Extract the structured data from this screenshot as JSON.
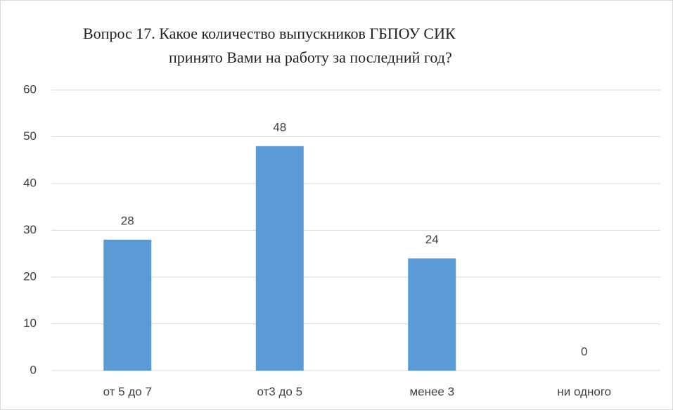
{
  "chart_data": {
    "type": "bar",
    "title": [
      "Вопрос 17. Какое количество выпускников  ГБПОУ СИК",
      "принято Вами на работу за последний год?"
    ],
    "categories": [
      "от 5 до 7",
      "от3 до 5",
      "менее 3",
      "ни одного"
    ],
    "values": [
      28,
      48,
      24,
      0
    ],
    "color": "#5b9bd5",
    "ylim": [
      0,
      60
    ],
    "yticks": [
      0,
      10,
      20,
      30,
      40,
      50,
      60
    ],
    "grid": true
  }
}
